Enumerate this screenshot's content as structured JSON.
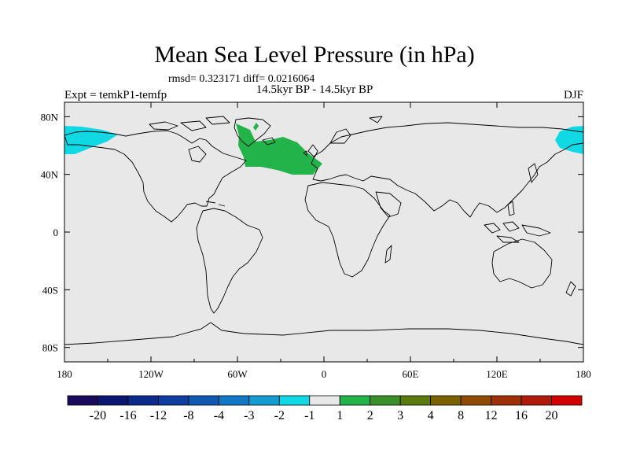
{
  "title": "Mean Sea Level Pressure (in hPa)",
  "stats": "rmsd= 0.323171 diff= 0.0216064",
  "subtitle": "14.5kyr BP - 14.5kyr BP",
  "expt": "Expt = temkP1-temfp",
  "season": "DJF",
  "colors": {
    "land_ocean": "#e8e8e8",
    "coast": "#000000",
    "cyan_anomaly": "#11d9e3",
    "green_anomaly": "#22b34a"
  },
  "map": {
    "lon_labels": [
      "180",
      "120W",
      "60W",
      "0",
      "60E",
      "120E",
      "180"
    ],
    "lat_labels": [
      "80N",
      "40N",
      "0",
      "40S",
      "80S"
    ]
  },
  "colorbar": {
    "labels": [
      "-20",
      "-16",
      "-12",
      "-8",
      "-4",
      "-3",
      "-2",
      "-1",
      "1",
      "2",
      "3",
      "4",
      "8",
      "12",
      "16",
      "20"
    ],
    "colors": [
      "#1a0a5c",
      "#0b1670",
      "#0c2a8a",
      "#0f3ea0",
      "#1058b0",
      "#1277c4",
      "#149bd2",
      "#11d9e3",
      "#e8e8e8",
      "#22b34a",
      "#3a8f2a",
      "#5a7a10",
      "#7a6200",
      "#8f4a05",
      "#9e3008",
      "#b01a0a",
      "#d20000"
    ]
  }
}
